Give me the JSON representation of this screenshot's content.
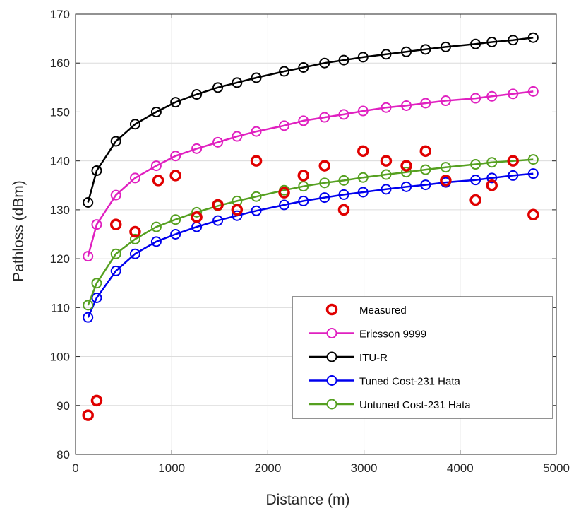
{
  "chart_data": {
    "type": "line",
    "title": "",
    "xlabel": "Distance (m)",
    "ylabel": "Pathloss (dBm)",
    "xlim": [
      0,
      5000
    ],
    "ylim": [
      80,
      170
    ],
    "xticks": [
      0,
      1000,
      2000,
      3000,
      4000,
      5000
    ],
    "yticks": [
      80,
      90,
      100,
      110,
      120,
      130,
      140,
      150,
      160,
      170
    ],
    "grid": true,
    "legend_position": "bottom-right",
    "series": [
      {
        "name": "Measured",
        "style": "markers",
        "color": "#e00000",
        "x": [
          130,
          220,
          420,
          620,
          860,
          1040,
          1260,
          1480,
          1680,
          1880,
          2170,
          2370,
          2590,
          2790,
          2990,
          3230,
          3440,
          3640,
          3850,
          4160,
          4330,
          4550,
          4760
        ],
        "y": [
          88,
          91,
          127,
          125.5,
          136,
          137,
          128.5,
          131,
          130,
          140,
          133.5,
          137,
          139,
          130,
          142,
          140,
          139,
          142,
          136,
          132,
          135,
          140,
          129
        ]
      },
      {
        "name": "Ericsson 9999",
        "style": "line-markers",
        "color": "#e020c0",
        "x": [
          130,
          220,
          420,
          620,
          840,
          1040,
          1260,
          1480,
          1680,
          1880,
          2170,
          2370,
          2590,
          2790,
          2990,
          3230,
          3440,
          3640,
          3850,
          4160,
          4330,
          4550,
          4760
        ],
        "y": [
          120.5,
          127,
          133,
          136.5,
          139,
          141,
          142.5,
          143.8,
          145,
          146,
          147.2,
          148.2,
          148.9,
          149.5,
          150.2,
          150.9,
          151.3,
          151.8,
          152.3,
          152.8,
          153.2,
          153.7,
          154.2
        ]
      },
      {
        "name": "ITU-R",
        "style": "line-markers",
        "color": "#000000",
        "x": [
          130,
          220,
          420,
          620,
          840,
          1040,
          1260,
          1480,
          1680,
          1880,
          2170,
          2370,
          2590,
          2790,
          2990,
          3230,
          3440,
          3640,
          3850,
          4160,
          4330,
          4550,
          4760
        ],
        "y": [
          131.5,
          138,
          144,
          147.5,
          150,
          152,
          153.6,
          155,
          156,
          157,
          158.3,
          159.1,
          160,
          160.6,
          161.2,
          161.8,
          162.3,
          162.8,
          163.3,
          163.9,
          164.3,
          164.7,
          165.2
        ]
      },
      {
        "name": "Tuned Cost-231 Hata",
        "style": "line-markers",
        "color": "#0000ee",
        "x": [
          130,
          220,
          420,
          620,
          840,
          1040,
          1260,
          1480,
          1680,
          1880,
          2170,
          2370,
          2590,
          2790,
          2990,
          3230,
          3440,
          3640,
          3850,
          4160,
          4330,
          4550,
          4760
        ],
        "y": [
          108,
          112,
          117.5,
          121,
          123.5,
          125,
          126.5,
          127.8,
          128.8,
          129.8,
          131,
          131.8,
          132.5,
          133.1,
          133.6,
          134.2,
          134.7,
          135.1,
          135.6,
          136.1,
          136.5,
          137,
          137.4
        ]
      },
      {
        "name": "Untuned Cost-231 Hata",
        "style": "line-markers",
        "color": "#55a020",
        "x": [
          130,
          220,
          420,
          620,
          840,
          1040,
          1260,
          1480,
          1680,
          1880,
          2170,
          2370,
          2590,
          2790,
          2990,
          3230,
          3440,
          3640,
          3850,
          4160,
          4330,
          4550,
          4760
        ],
        "y": [
          110.5,
          115,
          121,
          124,
          126.5,
          128,
          129.5,
          130.8,
          131.8,
          132.7,
          134,
          134.8,
          135.5,
          136,
          136.6,
          137.2,
          137.7,
          138.2,
          138.7,
          139.3,
          139.7,
          140,
          140.3
        ]
      }
    ]
  }
}
